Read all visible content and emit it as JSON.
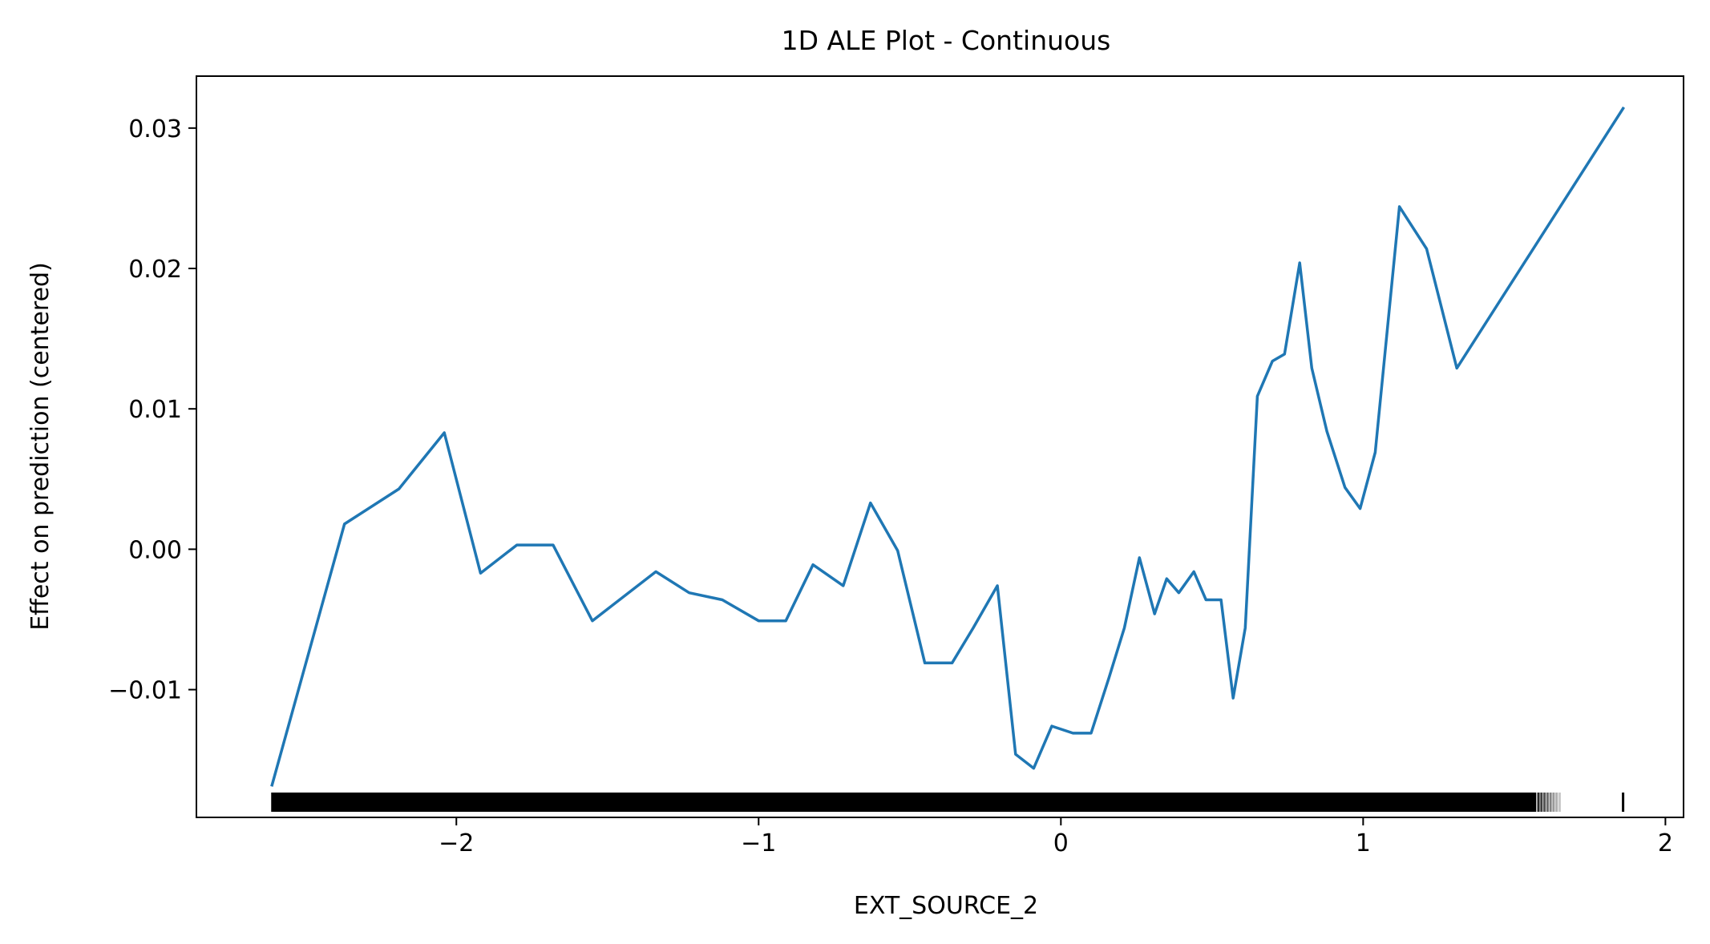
{
  "chart_data": {
    "type": "line",
    "title": "1D ALE Plot - Continuous",
    "xlabel": "EXT_SOURCE_2",
    "ylabel": "Effect on prediction (centered)",
    "xlim": [
      -2.86,
      2.06
    ],
    "ylim": [
      -0.0191,
      0.0337
    ],
    "xticks": [
      -2,
      -1,
      0,
      1,
      2
    ],
    "xtick_labels": [
      "−2",
      "−1",
      "0",
      "1",
      "2"
    ],
    "yticks": [
      -0.01,
      0.0,
      0.01,
      0.02,
      0.03
    ],
    "ytick_labels": [
      "−0.01",
      "0.00",
      "0.01",
      "0.02",
      "0.03"
    ],
    "grid": false,
    "legend": "none",
    "series": [
      {
        "color": "#1f77b4",
        "x": [
          -2.61,
          -2.37,
          -2.19,
          -2.04,
          -1.92,
          -1.8,
          -1.68,
          -1.55,
          -1.34,
          -1.23,
          -1.12,
          -1.0,
          -0.91,
          -0.82,
          -0.72,
          -0.63,
          -0.54,
          -0.45,
          -0.36,
          -0.29,
          -0.21,
          -0.15,
          -0.09,
          -0.03,
          0.04,
          0.1,
          0.16,
          0.21,
          0.26,
          0.31,
          0.35,
          0.39,
          0.44,
          0.48,
          0.53,
          0.57,
          0.61,
          0.65,
          0.7,
          0.74,
          0.79,
          0.83,
          0.88,
          0.94,
          0.99,
          1.04,
          1.12,
          1.21,
          1.31,
          1.86
        ],
        "y": [
          -0.0168,
          0.0018,
          0.0043,
          0.0083,
          -0.0017,
          0.0003,
          0.0003,
          -0.0051,
          -0.0016,
          -0.0031,
          -0.0036,
          -0.0051,
          -0.0051,
          -0.0011,
          -0.0026,
          0.0033,
          -0.0001,
          -0.0081,
          -0.0081,
          -0.0056,
          -0.0026,
          -0.0146,
          -0.0156,
          -0.0126,
          -0.0131,
          -0.0131,
          -0.0091,
          -0.0056,
          -0.0006,
          -0.0046,
          -0.0021,
          -0.0031,
          -0.0016,
          -0.0036,
          -0.0036,
          -0.0106,
          -0.0056,
          0.0109,
          0.0134,
          0.0139,
          0.0204,
          0.0129,
          0.0084,
          0.0044,
          0.0029,
          0.0069,
          0.0244,
          0.0214,
          0.0129,
          0.0314
        ]
      }
    ],
    "rug": {
      "color": "#000000",
      "dense_from": -2.61,
      "dense_to": 1.57,
      "fade_ticks": [
        1.58,
        1.59,
        1.6,
        1.61,
        1.62,
        1.63,
        1.64,
        1.65
      ],
      "outlier_ticks": [
        1.86
      ]
    }
  }
}
